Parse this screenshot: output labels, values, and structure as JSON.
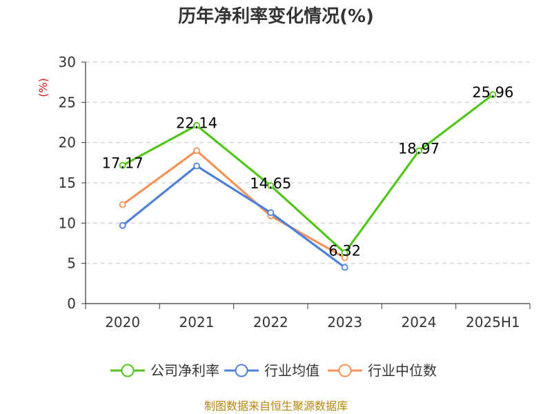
{
  "chart_data": {
    "type": "line",
    "title": "历年净利率变化情况(%)",
    "ylabel": "(%)",
    "categories": [
      "2020",
      "2021",
      "2022",
      "2023",
      "2024",
      "2025H1"
    ],
    "ylim": [
      0,
      30
    ],
    "yticks": [
      0,
      5,
      10,
      15,
      20,
      25,
      30
    ],
    "grid": "horizontal-dashed",
    "legend_position": "bottom",
    "series": [
      {
        "name": "公司净利率",
        "color": "#52c41a",
        "values": [
          17.17,
          22.14,
          14.65,
          6.32,
          18.97,
          25.96
        ],
        "labels": [
          "17.17",
          "22.14",
          "14.65",
          "6.32",
          "18.97",
          "25.96"
        ]
      },
      {
        "name": "行业均值",
        "color": "#4e7fd9",
        "values": [
          9.7,
          17.1,
          11.3,
          4.5,
          null,
          null
        ]
      },
      {
        "name": "行业中位数",
        "color": "#f5925a",
        "values": [
          12.3,
          19.0,
          10.9,
          5.7,
          null,
          null
        ]
      }
    ]
  },
  "footer": {
    "source": "制图数据来自恒生聚源数据库"
  }
}
